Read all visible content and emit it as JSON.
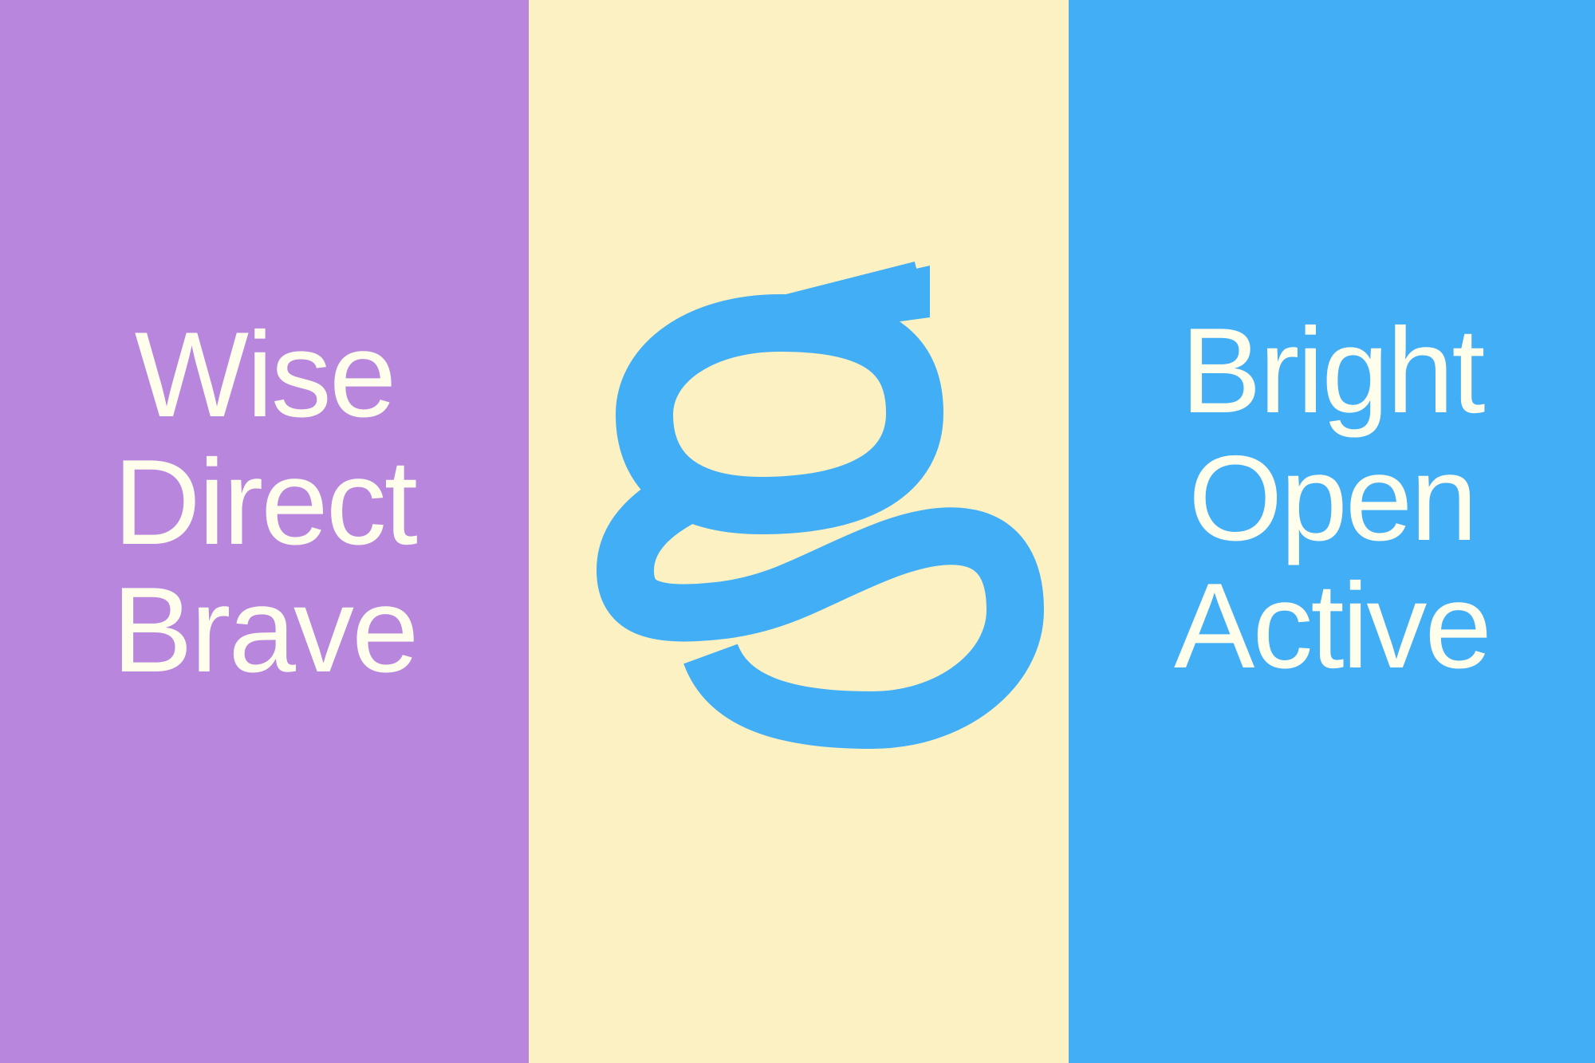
{
  "left_panel": {
    "background": "#B986DD",
    "words": [
      "Wise",
      "Direct",
      "Brave"
    ]
  },
  "center_panel": {
    "background": "#FBF1C3",
    "mark_letter": "g",
    "mark_color": "#42AEF6"
  },
  "right_panel": {
    "background": "#42AEF6",
    "words": [
      "Bright",
      "Open",
      "Active"
    ]
  },
  "text_color": "#FFFDEB"
}
